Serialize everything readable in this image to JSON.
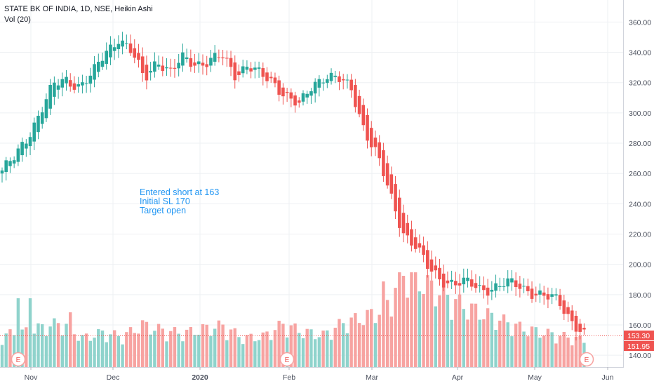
{
  "legend": {
    "title": "STATE BK OF INDIA, 1D, NSE, Heikin Ashi",
    "volume": "Vol (20)"
  },
  "annotation": {
    "lines": [
      "Entered short at 163",
      "Initial SL 170",
      "Target open"
    ]
  },
  "price_labels": {
    "last_price": "153.30",
    "last_open": "151.95"
  },
  "earnings_marker": "E",
  "colors": {
    "up": "#26a69a",
    "down": "#ef5350",
    "vol_up": "#8fd3cc",
    "vol_down": "#f7a3a1",
    "annotation": "#2196f3",
    "grid": "#eef0f3"
  },
  "chart_data": {
    "type": "candlestick",
    "symbol": "STATE BK OF INDIA",
    "interval": "1D",
    "exchange": "NSE",
    "style": "Heikin Ashi",
    "y_ticks": [
      140,
      160,
      180,
      200,
      220,
      240,
      260,
      280,
      300,
      320,
      340,
      360
    ],
    "ylim": [
      130,
      370
    ],
    "x_labels": [
      "Nov",
      "Dec",
      "2020",
      "Feb",
      "Mar",
      "Apr",
      "May",
      "Jun"
    ],
    "grid": true,
    "volume_indicator": "Vol (20)",
    "close_keypoints": [
      262,
      270,
      285,
      302,
      318,
      322,
      318,
      325,
      340,
      350,
      340,
      322,
      336,
      326,
      336,
      333,
      334,
      337,
      326,
      332,
      324,
      320,
      312,
      304,
      318,
      326,
      322,
      315,
      290,
      272,
      245,
      222,
      212,
      196,
      190,
      188,
      187,
      184,
      185,
      187,
      186,
      182,
      178,
      176,
      164,
      153
    ],
    "volume_keypoints": [
      42,
      45,
      52,
      58,
      38,
      45,
      40,
      55,
      48,
      44,
      50,
      54,
      38,
      40,
      56,
      46,
      42,
      58,
      65,
      75,
      120,
      110,
      95,
      80,
      70,
      60,
      50,
      45,
      40,
      35
    ],
    "annotations": [
      "Entered short at 163",
      "Initial SL 170",
      "Target open"
    ],
    "last_price": 153.3,
    "last_open": 151.95
  }
}
